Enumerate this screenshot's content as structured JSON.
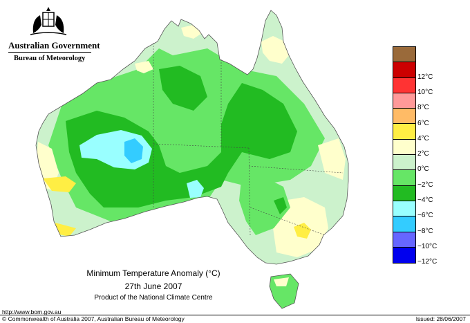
{
  "header": {
    "gov_name": "Australian Government",
    "bureau": "Bureau of Meteorology"
  },
  "title": {
    "main": "Minimum Temperature Anomaly (°C)",
    "date": "27th June 2007",
    "product": "Product of the National Climate Centre"
  },
  "legend": {
    "items": [
      {
        "label": "",
        "color": "#9a6a3a"
      },
      {
        "label": "12°C",
        "color": "#cc0000"
      },
      {
        "label": "10°C",
        "color": "#ff3333"
      },
      {
        "label": "8°C",
        "color": "#ff9999"
      },
      {
        "label": "6°C",
        "color": "#ffbb66"
      },
      {
        "label": "4°C",
        "color": "#ffee44"
      },
      {
        "label": "2°C",
        "color": "#ffffcc"
      },
      {
        "label": "0°C",
        "color": "#ccf2cc"
      },
      {
        "label": "−2°C",
        "color": "#66e666"
      },
      {
        "label": "−4°C",
        "color": "#22bb22"
      },
      {
        "label": "−6°C",
        "color": "#99ffff"
      },
      {
        "label": "−8°C",
        "color": "#33ccff"
      },
      {
        "label": "−10°C",
        "color": "#6666ff"
      },
      {
        "label": "−12°C",
        "color": "#0000ee"
      }
    ]
  },
  "footer": {
    "url": "http://www.bom.gov.au",
    "copyright": "© Commonwealth of Australia 2007, Australian Bureau of Meteorology",
    "issued": "Issued: 28/06/2007"
  }
}
